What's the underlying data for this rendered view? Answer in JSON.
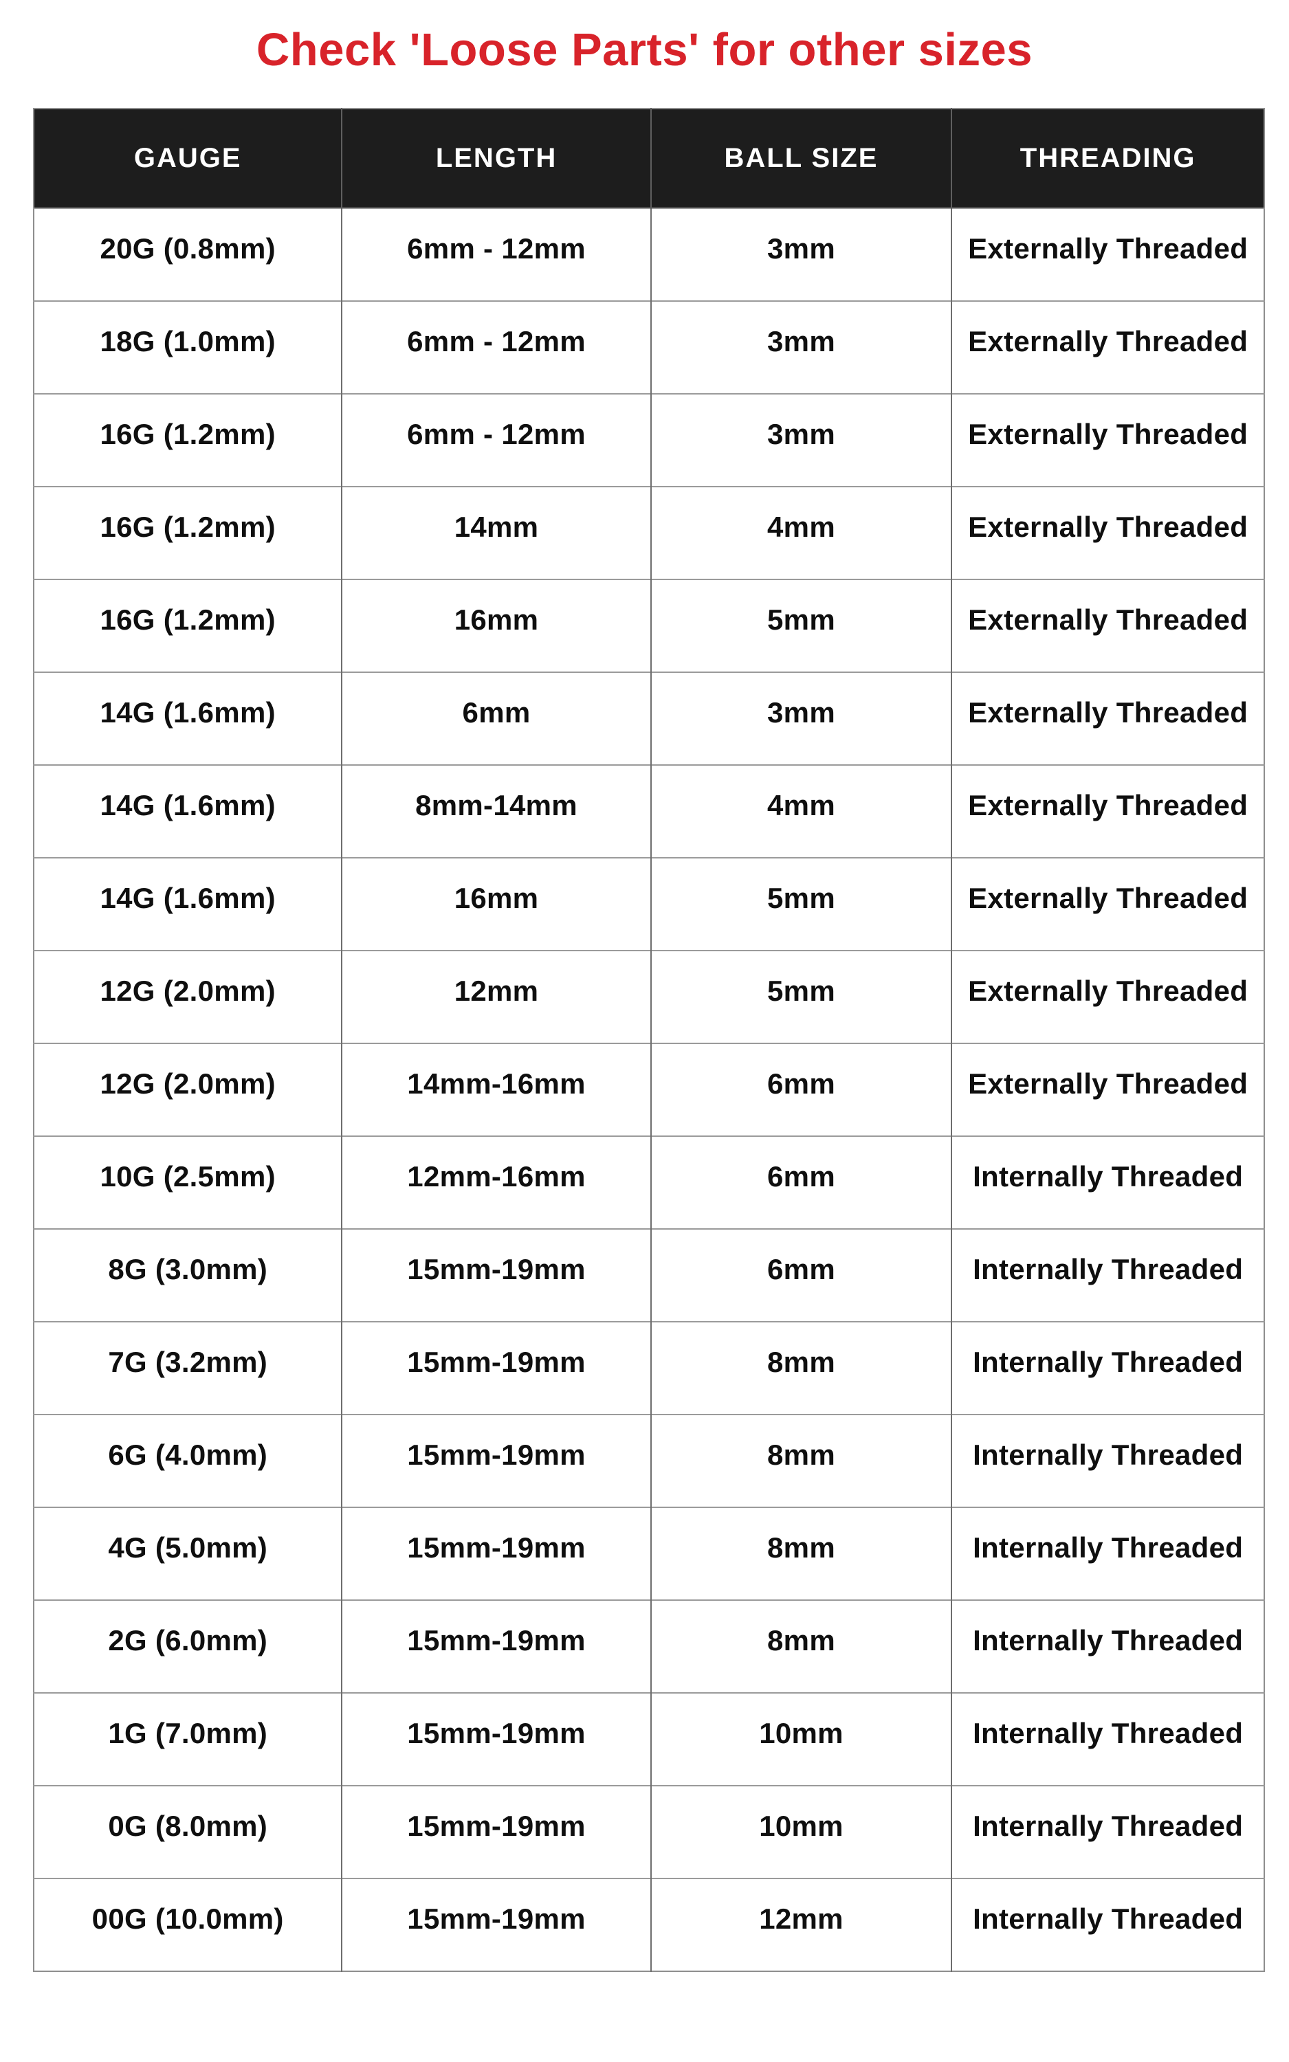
{
  "title": {
    "text": "Check 'Loose Parts' for other sizes",
    "color": "#d8232a"
  },
  "table": {
    "headers": [
      "GAUGE",
      "LENGTH",
      "BALL SIZE",
      "THREADING"
    ],
    "header_bg": "#1d1d1d",
    "header_text_color": "#ffffff",
    "rows": [
      [
        "20G (0.8mm)",
        "6mm - 12mm",
        "3mm",
        "Externally Threaded"
      ],
      [
        "18G (1.0mm)",
        "6mm - 12mm",
        "3mm",
        "Externally Threaded"
      ],
      [
        "16G (1.2mm)",
        "6mm - 12mm",
        "3mm",
        "Externally Threaded"
      ],
      [
        "16G (1.2mm)",
        "14mm",
        "4mm",
        "Externally Threaded"
      ],
      [
        "16G (1.2mm)",
        "16mm",
        "5mm",
        "Externally Threaded"
      ],
      [
        "14G (1.6mm)",
        "6mm",
        "3mm",
        "Externally Threaded"
      ],
      [
        "14G (1.6mm)",
        "8mm-14mm",
        "4mm",
        "Externally Threaded"
      ],
      [
        "14G (1.6mm)",
        "16mm",
        "5mm",
        "Externally Threaded"
      ],
      [
        "12G (2.0mm)",
        "12mm",
        "5mm",
        "Externally Threaded"
      ],
      [
        "12G (2.0mm)",
        "14mm-16mm",
        "6mm",
        "Externally Threaded"
      ],
      [
        "10G (2.5mm)",
        "12mm-16mm",
        "6mm",
        "Internally Threaded"
      ],
      [
        "8G (3.0mm)",
        "15mm-19mm",
        "6mm",
        "Internally Threaded"
      ],
      [
        "7G (3.2mm)",
        "15mm-19mm",
        "8mm",
        "Internally Threaded"
      ],
      [
        "6G (4.0mm)",
        "15mm-19mm",
        "8mm",
        "Internally Threaded"
      ],
      [
        "4G (5.0mm)",
        "15mm-19mm",
        "8mm",
        "Internally Threaded"
      ],
      [
        "2G (6.0mm)",
        "15mm-19mm",
        "8mm",
        "Internally Threaded"
      ],
      [
        "1G (7.0mm)",
        "15mm-19mm",
        "10mm",
        "Internally Threaded"
      ],
      [
        "0G (8.0mm)",
        "15mm-19mm",
        "10mm",
        "Internally Threaded"
      ],
      [
        "00G (10.0mm)",
        "15mm-19mm",
        "12mm",
        "Internally Threaded"
      ]
    ]
  },
  "chart_data": {
    "type": "table",
    "title": "Check 'Loose Parts' for other sizes",
    "columns": [
      "GAUGE",
      "LENGTH",
      "BALL SIZE",
      "THREADING"
    ],
    "rows": [
      [
        "20G (0.8mm)",
        "6mm - 12mm",
        "3mm",
        "Externally Threaded"
      ],
      [
        "18G (1.0mm)",
        "6mm - 12mm",
        "3mm",
        "Externally Threaded"
      ],
      [
        "16G (1.2mm)",
        "6mm - 12mm",
        "3mm",
        "Externally Threaded"
      ],
      [
        "16G (1.2mm)",
        "14mm",
        "4mm",
        "Externally Threaded"
      ],
      [
        "16G (1.2mm)",
        "16mm",
        "5mm",
        "Externally Threaded"
      ],
      [
        "14G (1.6mm)",
        "6mm",
        "3mm",
        "Externally Threaded"
      ],
      [
        "14G (1.6mm)",
        "8mm-14mm",
        "4mm",
        "Externally Threaded"
      ],
      [
        "14G (1.6mm)",
        "16mm",
        "5mm",
        "Externally Threaded"
      ],
      [
        "12G (2.0mm)",
        "12mm",
        "5mm",
        "Externally Threaded"
      ],
      [
        "12G (2.0mm)",
        "14mm-16mm",
        "6mm",
        "Externally Threaded"
      ],
      [
        "10G (2.5mm)",
        "12mm-16mm",
        "6mm",
        "Internally Threaded"
      ],
      [
        "8G (3.0mm)",
        "15mm-19mm",
        "6mm",
        "Internally Threaded"
      ],
      [
        "7G (3.2mm)",
        "15mm-19mm",
        "8mm",
        "Internally Threaded"
      ],
      [
        "6G (4.0mm)",
        "15mm-19mm",
        "8mm",
        "Internally Threaded"
      ],
      [
        "4G (5.0mm)",
        "15mm-19mm",
        "8mm",
        "Internally Threaded"
      ],
      [
        "2G (6.0mm)",
        "15mm-19mm",
        "8mm",
        "Internally Threaded"
      ],
      [
        "1G (7.0mm)",
        "15mm-19mm",
        "10mm",
        "Internally Threaded"
      ],
      [
        "0G (8.0mm)",
        "15mm-19mm",
        "10mm",
        "Internally Threaded"
      ],
      [
        "00G (10.0mm)",
        "15mm-19mm",
        "12mm",
        "Internally Threaded"
      ]
    ]
  }
}
